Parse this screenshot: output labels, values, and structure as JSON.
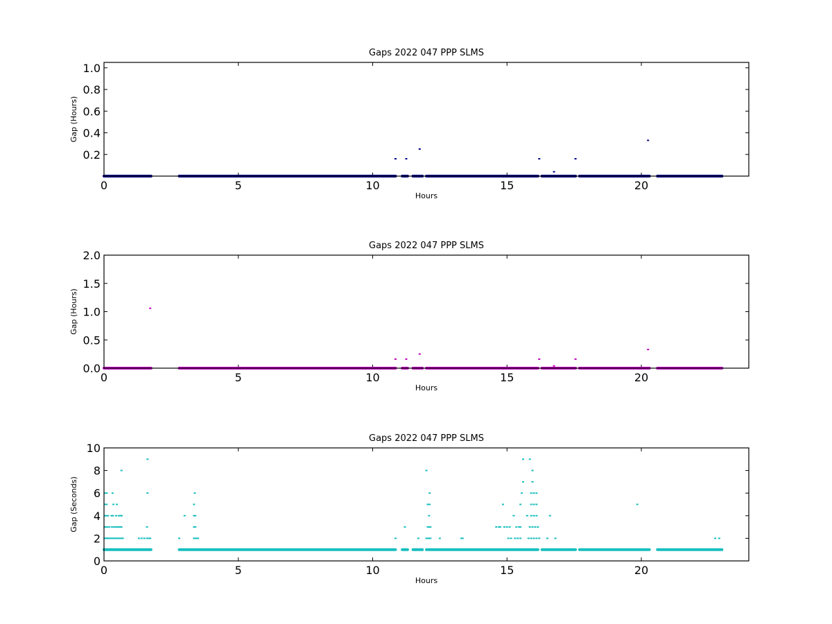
{
  "chart_data": [
    {
      "type": "scatter",
      "title": "Gaps 2022 047 PPP  SLMS",
      "xlabel": "Hours",
      "ylabel": "Gap (Hours)",
      "xlim": [
        0,
        24
      ],
      "ylim": [
        0,
        1.05
      ],
      "xticks": [
        0,
        5,
        10,
        15,
        20
      ],
      "yticks": [
        0.2,
        0.4,
        0.6,
        0.8,
        1.0
      ],
      "ytick_labels": [
        "0.2",
        "0.4",
        "0.6",
        "0.8",
        "1.0"
      ],
      "color": "#00008b",
      "series": [
        {
          "baseline": {
            "y": 0.0,
            "x_ranges": [
              [
                0.0,
                1.75
              ],
              [
                2.8,
                10.85
              ],
              [
                11.1,
                11.3
              ],
              [
                11.5,
                11.85
              ],
              [
                12.0,
                16.15
              ],
              [
                16.3,
                17.55
              ],
              [
                17.7,
                20.3
              ],
              [
                20.6,
                23.0
              ]
            ]
          },
          "points": [
            [
              10.85,
              0.16
            ],
            [
              11.25,
              0.16
            ],
            [
              11.75,
              0.25
            ],
            [
              16.2,
              0.16
            ],
            [
              16.75,
              0.04
            ],
            [
              17.55,
              0.16
            ],
            [
              20.25,
              0.33
            ]
          ]
        }
      ]
    },
    {
      "type": "scatter",
      "title": "Gaps 2022 047 PPP  SLMS",
      "xlabel": "Hours",
      "ylabel": "Gap (Hours)",
      "xlim": [
        0,
        24
      ],
      "ylim": [
        0,
        2.0
      ],
      "xticks": [
        0,
        5,
        10,
        15,
        20
      ],
      "yticks": [
        0.0,
        0.5,
        1.0,
        1.5,
        2.0
      ],
      "ytick_labels": [
        "0.0",
        "0.5",
        "1.0",
        "1.5",
        "2.0"
      ],
      "color": "#bf00bf",
      "series": [
        {
          "baseline": {
            "y": 0.0,
            "x_ranges": [
              [
                0.0,
                1.75
              ],
              [
                2.8,
                10.85
              ],
              [
                11.1,
                11.3
              ],
              [
                11.5,
                11.85
              ],
              [
                12.0,
                16.15
              ],
              [
                16.3,
                17.55
              ],
              [
                17.7,
                20.3
              ],
              [
                20.6,
                23.0
              ]
            ]
          },
          "points": [
            [
              1.72,
              1.06
            ],
            [
              10.85,
              0.16
            ],
            [
              11.25,
              0.16
            ],
            [
              11.75,
              0.25
            ],
            [
              16.2,
              0.16
            ],
            [
              16.75,
              0.04
            ],
            [
              17.55,
              0.16
            ],
            [
              20.25,
              0.33
            ]
          ]
        }
      ]
    },
    {
      "type": "scatter",
      "title": "Gaps 2022 047 PPP  SLMS",
      "xlabel": "Hours",
      "ylabel": "Gap (Seconds)",
      "xlim": [
        0,
        24
      ],
      "ylim": [
        0,
        10
      ],
      "xticks": [
        0,
        5,
        10,
        15,
        20
      ],
      "yticks": [
        0,
        2,
        4,
        6,
        8,
        10
      ],
      "ytick_labels": [
        "0",
        "2",
        "4",
        "6",
        "8",
        "10"
      ],
      "color": "#17bebe",
      "series": [
        {
          "baseline": {
            "y": 1,
            "x_ranges": [
              [
                0.0,
                1.75
              ],
              [
                2.8,
                10.85
              ],
              [
                11.1,
                11.3
              ],
              [
                11.5,
                11.85
              ],
              [
                12.0,
                16.15
              ],
              [
                16.3,
                17.55
              ],
              [
                17.7,
                20.3
              ],
              [
                20.6,
                23.0
              ]
            ]
          },
          "points": [
            [
              0.02,
              2
            ],
            [
              0.05,
              2
            ],
            [
              0.08,
              2
            ],
            [
              0.1,
              2
            ],
            [
              0.12,
              2
            ],
            [
              0.15,
              2
            ],
            [
              0.2,
              2
            ],
            [
              0.25,
              2
            ],
            [
              0.3,
              2
            ],
            [
              0.35,
              2
            ],
            [
              0.4,
              2
            ],
            [
              0.45,
              2
            ],
            [
              0.5,
              2
            ],
            [
              0.55,
              2
            ],
            [
              0.6,
              2
            ],
            [
              0.65,
              2
            ],
            [
              0.7,
              2
            ],
            [
              0.02,
              3
            ],
            [
              0.06,
              3
            ],
            [
              0.12,
              3
            ],
            [
              0.2,
              3
            ],
            [
              0.3,
              3
            ],
            [
              0.38,
              3
            ],
            [
              0.45,
              3
            ],
            [
              0.5,
              3
            ],
            [
              0.55,
              3
            ],
            [
              0.6,
              3
            ],
            [
              0.65,
              3
            ],
            [
              0.03,
              4
            ],
            [
              0.08,
              4
            ],
            [
              0.15,
              4
            ],
            [
              0.28,
              4
            ],
            [
              0.33,
              4
            ],
            [
              0.45,
              4
            ],
            [
              0.55,
              4
            ],
            [
              0.62,
              4
            ],
            [
              0.66,
              4
            ],
            [
              0.05,
              5
            ],
            [
              0.1,
              5
            ],
            [
              0.35,
              5
            ],
            [
              0.48,
              5
            ],
            [
              0.05,
              6
            ],
            [
              0.1,
              6
            ],
            [
              0.32,
              6
            ],
            [
              0.65,
              8
            ],
            [
              1.3,
              2
            ],
            [
              1.4,
              2
            ],
            [
              1.5,
              2
            ],
            [
              1.6,
              2
            ],
            [
              1.68,
              2
            ],
            [
              1.72,
              2
            ],
            [
              1.6,
              3
            ],
            [
              1.62,
              6
            ],
            [
              1.62,
              9
            ],
            [
              2.8,
              2
            ],
            [
              3.35,
              2
            ],
            [
              3.4,
              2
            ],
            [
              3.45,
              2
            ],
            [
              3.5,
              2
            ],
            [
              3.0,
              4
            ],
            [
              3.35,
              4
            ],
            [
              3.4,
              4
            ],
            [
              3.35,
              3
            ],
            [
              3.4,
              3
            ],
            [
              3.35,
              5
            ],
            [
              3.38,
              6
            ],
            [
              10.85,
              2
            ],
            [
              11.2,
              3
            ],
            [
              11.7,
              2
            ],
            [
              12.0,
              2
            ],
            [
              12.05,
              2
            ],
            [
              12.1,
              2
            ],
            [
              12.15,
              2
            ],
            [
              12.05,
              3
            ],
            [
              12.1,
              3
            ],
            [
              12.15,
              3
            ],
            [
              12.1,
              4
            ],
            [
              12.05,
              5
            ],
            [
              12.12,
              5
            ],
            [
              12.12,
              6
            ],
            [
              12.0,
              8
            ],
            [
              12.5,
              2
            ],
            [
              13.3,
              2
            ],
            [
              13.35,
              2
            ],
            [
              14.6,
              3
            ],
            [
              14.7,
              3
            ],
            [
              14.75,
              3
            ],
            [
              14.9,
              3
            ],
            [
              15.0,
              3
            ],
            [
              15.1,
              3
            ],
            [
              15.05,
              2
            ],
            [
              15.15,
              2
            ],
            [
              15.3,
              2
            ],
            [
              15.4,
              2
            ],
            [
              15.5,
              2
            ],
            [
              14.85,
              5
            ],
            [
              15.25,
              4
            ],
            [
              15.35,
              3
            ],
            [
              15.45,
              3
            ],
            [
              15.5,
              3
            ],
            [
              15.5,
              5
            ],
            [
              15.55,
              6
            ],
            [
              15.6,
              7
            ],
            [
              15.6,
              9
            ],
            [
              15.75,
              4
            ],
            [
              15.85,
              9
            ],
            [
              15.8,
              2
            ],
            [
              15.9,
              2
            ],
            [
              16.0,
              2
            ],
            [
              16.1,
              2
            ],
            [
              16.2,
              2
            ],
            [
              15.85,
              3
            ],
            [
              15.95,
              3
            ],
            [
              16.05,
              3
            ],
            [
              16.15,
              3
            ],
            [
              15.9,
              4
            ],
            [
              16.0,
              4
            ],
            [
              16.1,
              4
            ],
            [
              15.9,
              5
            ],
            [
              16.0,
              5
            ],
            [
              16.1,
              5
            ],
            [
              15.9,
              6
            ],
            [
              16.0,
              6
            ],
            [
              16.1,
              6
            ],
            [
              15.95,
              7
            ],
            [
              15.95,
              8
            ],
            [
              16.5,
              2
            ],
            [
              16.6,
              4
            ],
            [
              16.8,
              2
            ],
            [
              19.85,
              5
            ],
            [
              22.75,
              2
            ],
            [
              22.9,
              2
            ]
          ]
        }
      ]
    }
  ]
}
